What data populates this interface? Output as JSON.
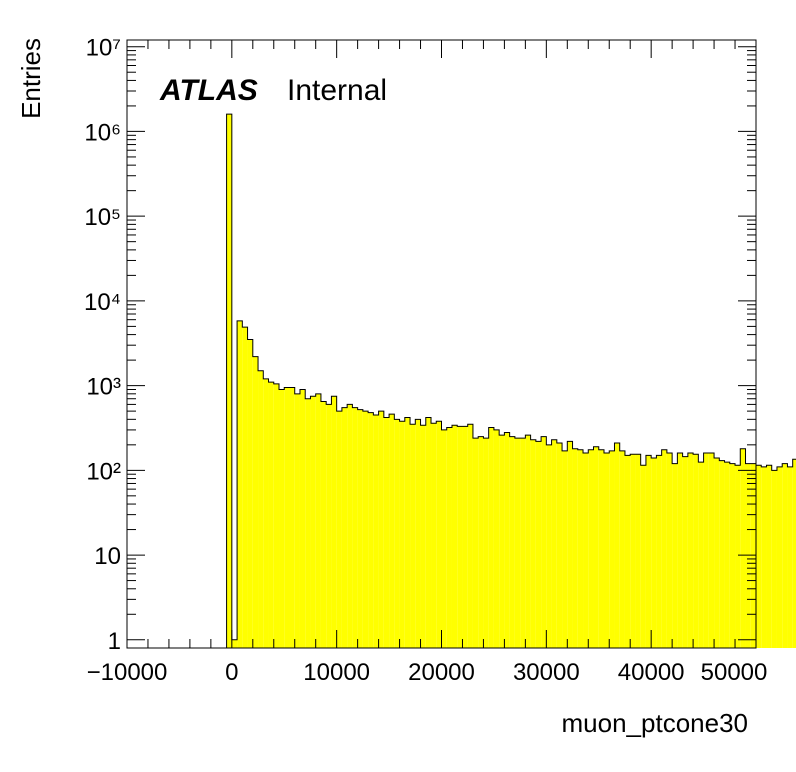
{
  "chart_data": {
    "type": "bar",
    "title": "",
    "xlabel": "muon_ptcone30",
    "ylabel": "Entries",
    "label_bold": "ATLAS",
    "label_status": "Internal",
    "xlim": [
      -10000,
      50000
    ],
    "ylim": [
      0.8,
      12000000
    ],
    "ylog": true,
    "x_ticks": [
      "−10000",
      "0",
      "10000",
      "20000",
      "30000",
      "40000",
      "50000"
    ],
    "y_ticks": [
      "1",
      "10",
      "10²",
      "10³",
      "10⁴",
      "10⁵",
      "10⁶",
      "10⁷"
    ],
    "fill_color": "#ffff00",
    "line_color": "#000000",
    "bin_width": 500,
    "first_bin_low": -500,
    "counts": [
      1600000,
      1,
      5800,
      4900,
      3500,
      2200,
      1500,
      1200,
      1100,
      1050,
      900,
      950,
      950,
      800,
      900,
      700,
      750,
      800,
      650,
      600,
      750,
      500,
      550,
      600,
      550,
      520,
      500,
      480,
      450,
      500,
      420,
      460,
      400,
      380,
      420,
      350,
      400,
      340,
      420,
      360,
      380,
      300,
      320,
      340,
      330,
      330,
      350,
      240,
      250,
      240,
      320,
      300,
      260,
      280,
      250,
      240,
      240,
      260,
      230,
      220,
      250,
      200,
      230,
      210,
      170,
      220,
      180,
      175,
      160,
      175,
      190,
      175,
      160,
      170,
      210,
      170,
      150,
      155,
      155,
      115,
      150,
      140,
      150,
      175,
      160,
      120,
      160,
      145,
      160,
      155,
      125,
      160,
      160,
      140,
      130,
      125,
      120,
      115,
      180,
      120,
      120,
      115,
      110,
      115,
      100,
      110,
      120,
      110,
      135,
      100,
      115,
      105
    ],
    "grid": false
  }
}
